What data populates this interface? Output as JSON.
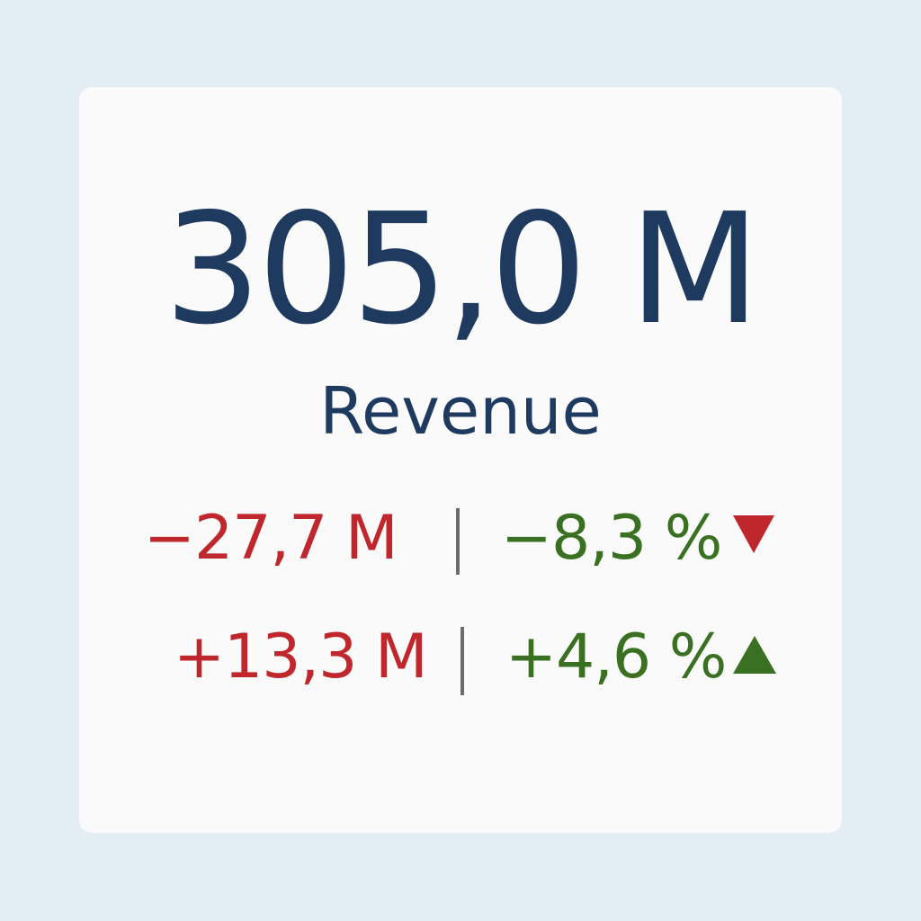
{
  "kpi": {
    "value": "305,0 M",
    "label": "Revenue"
  },
  "comparisons": [
    {
      "absolute": "−27,7 M",
      "percent": "−8,3 %",
      "trend_icon": "triangle-down-icon",
      "trend_color": "#c0272d"
    },
    {
      "absolute": "+13,3 M",
      "percent": "+4,6 %",
      "trend_icon": "triangle-up-icon",
      "trend_color": "#3a7021"
    }
  ],
  "colors": {
    "background": "#e3edf4",
    "card": "#fafafa",
    "primary_text": "#1f3a5f",
    "negative": "#c0272d",
    "positive": "#3a7021",
    "separator": "#6b6b6b"
  }
}
